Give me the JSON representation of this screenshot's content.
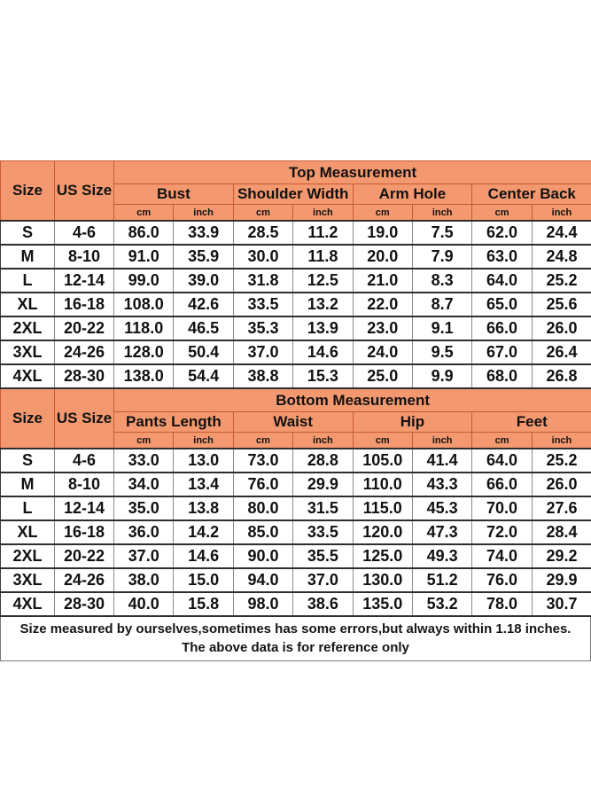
{
  "colors": {
    "header_fill": "#f4996f",
    "header_border": "#c65a33",
    "grid_horizontal": "#2e2e2e",
    "grid_vertical": "#8a8a8a",
    "text": "#111111"
  },
  "sections": [
    {
      "title": "Top Measurement",
      "size_label": "Size",
      "us_size_label": "US Size",
      "unit_labels": [
        "cm",
        "inch"
      ],
      "groups": [
        {
          "label": "Bust"
        },
        {
          "label": "Shoulder Width"
        },
        {
          "label": "Arm Hole"
        },
        {
          "label": "Center Back"
        }
      ],
      "rows": [
        {
          "size": "S",
          "us_size": "4-6",
          "values": [
            "86.0",
            "33.9",
            "28.5",
            "11.2",
            "19.0",
            "7.5",
            "62.0",
            "24.4"
          ]
        },
        {
          "size": "M",
          "us_size": "8-10",
          "values": [
            "91.0",
            "35.9",
            "30.0",
            "11.8",
            "20.0",
            "7.9",
            "63.0",
            "24.8"
          ]
        },
        {
          "size": "L",
          "us_size": "12-14",
          "values": [
            "99.0",
            "39.0",
            "31.8",
            "12.5",
            "21.0",
            "8.3",
            "64.0",
            "25.2"
          ]
        },
        {
          "size": "XL",
          "us_size": "16-18",
          "values": [
            "108.0",
            "42.6",
            "33.5",
            "13.2",
            "22.0",
            "8.7",
            "65.0",
            "25.6"
          ]
        },
        {
          "size": "2XL",
          "us_size": "20-22",
          "values": [
            "118.0",
            "46.5",
            "35.3",
            "13.9",
            "23.0",
            "9.1",
            "66.0",
            "26.0"
          ]
        },
        {
          "size": "3XL",
          "us_size": "24-26",
          "values": [
            "128.0",
            "50.4",
            "37.0",
            "14.6",
            "24.0",
            "9.5",
            "67.0",
            "26.4"
          ]
        },
        {
          "size": "4XL",
          "us_size": "28-30",
          "values": [
            "138.0",
            "54.4",
            "38.8",
            "15.3",
            "25.0",
            "9.9",
            "68.0",
            "26.8"
          ]
        }
      ]
    },
    {
      "title": "Bottom Measurement",
      "size_label": "Size",
      "us_size_label": "US Size",
      "unit_labels": [
        "cm",
        "inch"
      ],
      "groups": [
        {
          "label": "Pants Length"
        },
        {
          "label": "Waist"
        },
        {
          "label": "Hip"
        },
        {
          "label": "Feet"
        }
      ],
      "rows": [
        {
          "size": "S",
          "us_size": "4-6",
          "values": [
            "33.0",
            "13.0",
            "73.0",
            "28.8",
            "105.0",
            "41.4",
            "64.0",
            "25.2"
          ]
        },
        {
          "size": "M",
          "us_size": "8-10",
          "values": [
            "34.0",
            "13.4",
            "76.0",
            "29.9",
            "110.0",
            "43.3",
            "66.0",
            "26.0"
          ]
        },
        {
          "size": "L",
          "us_size": "12-14",
          "values": [
            "35.0",
            "13.8",
            "80.0",
            "31.5",
            "115.0",
            "45.3",
            "70.0",
            "27.6"
          ]
        },
        {
          "size": "XL",
          "us_size": "16-18",
          "values": [
            "36.0",
            "14.2",
            "85.0",
            "33.5",
            "120.0",
            "47.3",
            "72.0",
            "28.4"
          ]
        },
        {
          "size": "2XL",
          "us_size": "20-22",
          "values": [
            "37.0",
            "14.6",
            "90.0",
            "35.5",
            "125.0",
            "49.3",
            "74.0",
            "29.2"
          ]
        },
        {
          "size": "3XL",
          "us_size": "24-26",
          "values": [
            "38.0",
            "15.0",
            "94.0",
            "37.0",
            "130.0",
            "51.2",
            "76.0",
            "29.9"
          ]
        },
        {
          "size": "4XL",
          "us_size": "28-30",
          "values": [
            "40.0",
            "15.8",
            "98.0",
            "38.6",
            "135.0",
            "53.2",
            "78.0",
            "30.7"
          ]
        }
      ]
    }
  ],
  "footer": {
    "line1": "Size measured by ourselves,sometimes has some errors,but always within 1.18 inches.",
    "line2": "The above data is for reference only"
  }
}
